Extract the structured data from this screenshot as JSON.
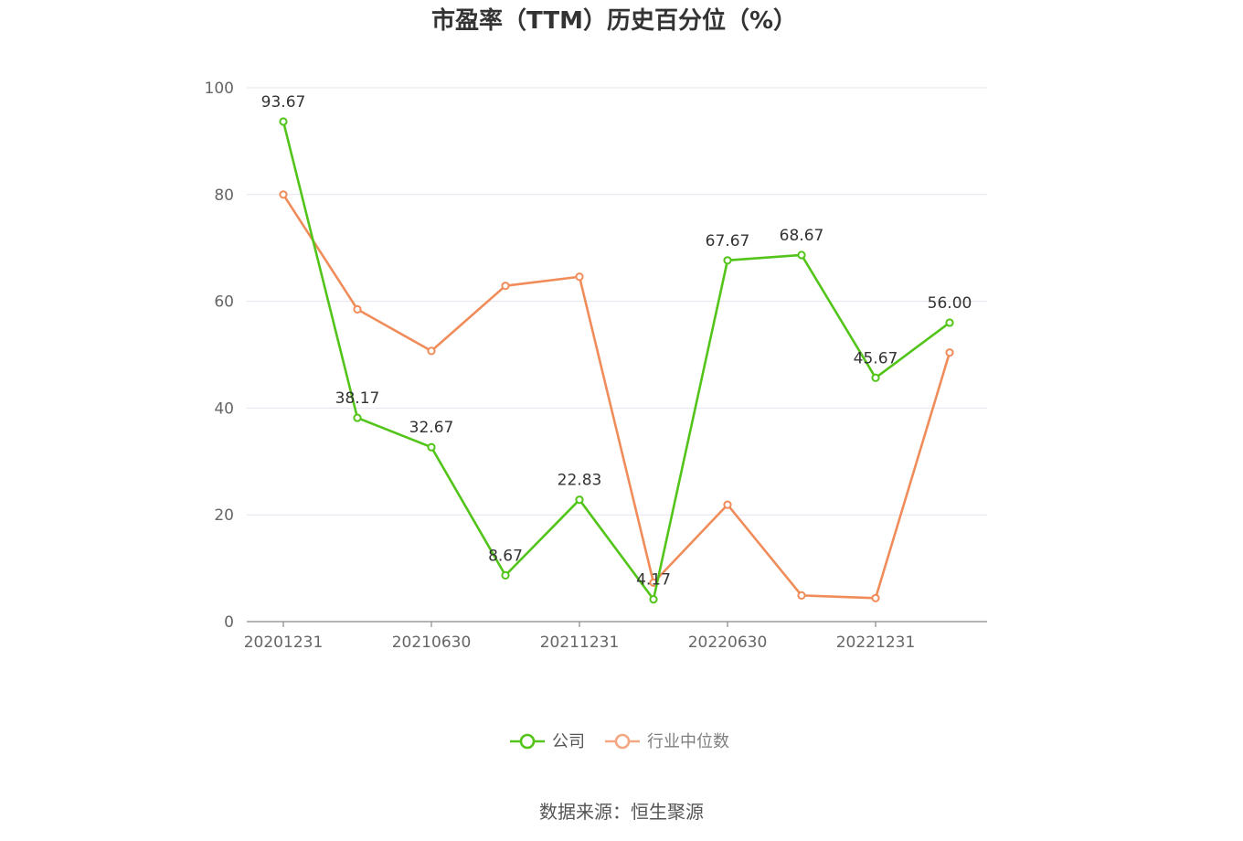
{
  "source": "数据来源：恒生聚源",
  "chart_data": {
    "type": "line",
    "title": "市盈率（TTM）历史百分位（%）",
    "xlabel": "",
    "ylabel": "",
    "ylim": [
      0,
      100
    ],
    "yticks": [
      "0",
      "20",
      "40",
      "60",
      "80",
      "100"
    ],
    "x": [
      "20201231",
      "20210331",
      "20210630",
      "20210930",
      "20211231",
      "20220331",
      "20220630",
      "20220930",
      "20221231",
      "20230331"
    ],
    "xtick_labels": [
      "20201231",
      "20210630",
      "20211231",
      "20220630",
      "20221231"
    ],
    "grid": true,
    "legend_position": "bottom-center",
    "series": [
      {
        "name": "公司",
        "color": "#52c41a",
        "values": [
          93.67,
          38.17,
          32.67,
          8.67,
          22.83,
          4.17,
          67.67,
          68.67,
          45.67,
          56.0
        ],
        "labels": [
          "93.67",
          "38.17",
          "32.67",
          "8.67",
          "22.83",
          "4.17",
          "67.67",
          "68.67",
          "45.67",
          "56.00"
        ]
      },
      {
        "name": "行业中位数",
        "color": "#f08c5a",
        "values": [
          80.0,
          58.5,
          50.7,
          62.9,
          64.6,
          7.3,
          21.9,
          4.9,
          4.4,
          50.4
        ]
      }
    ]
  }
}
